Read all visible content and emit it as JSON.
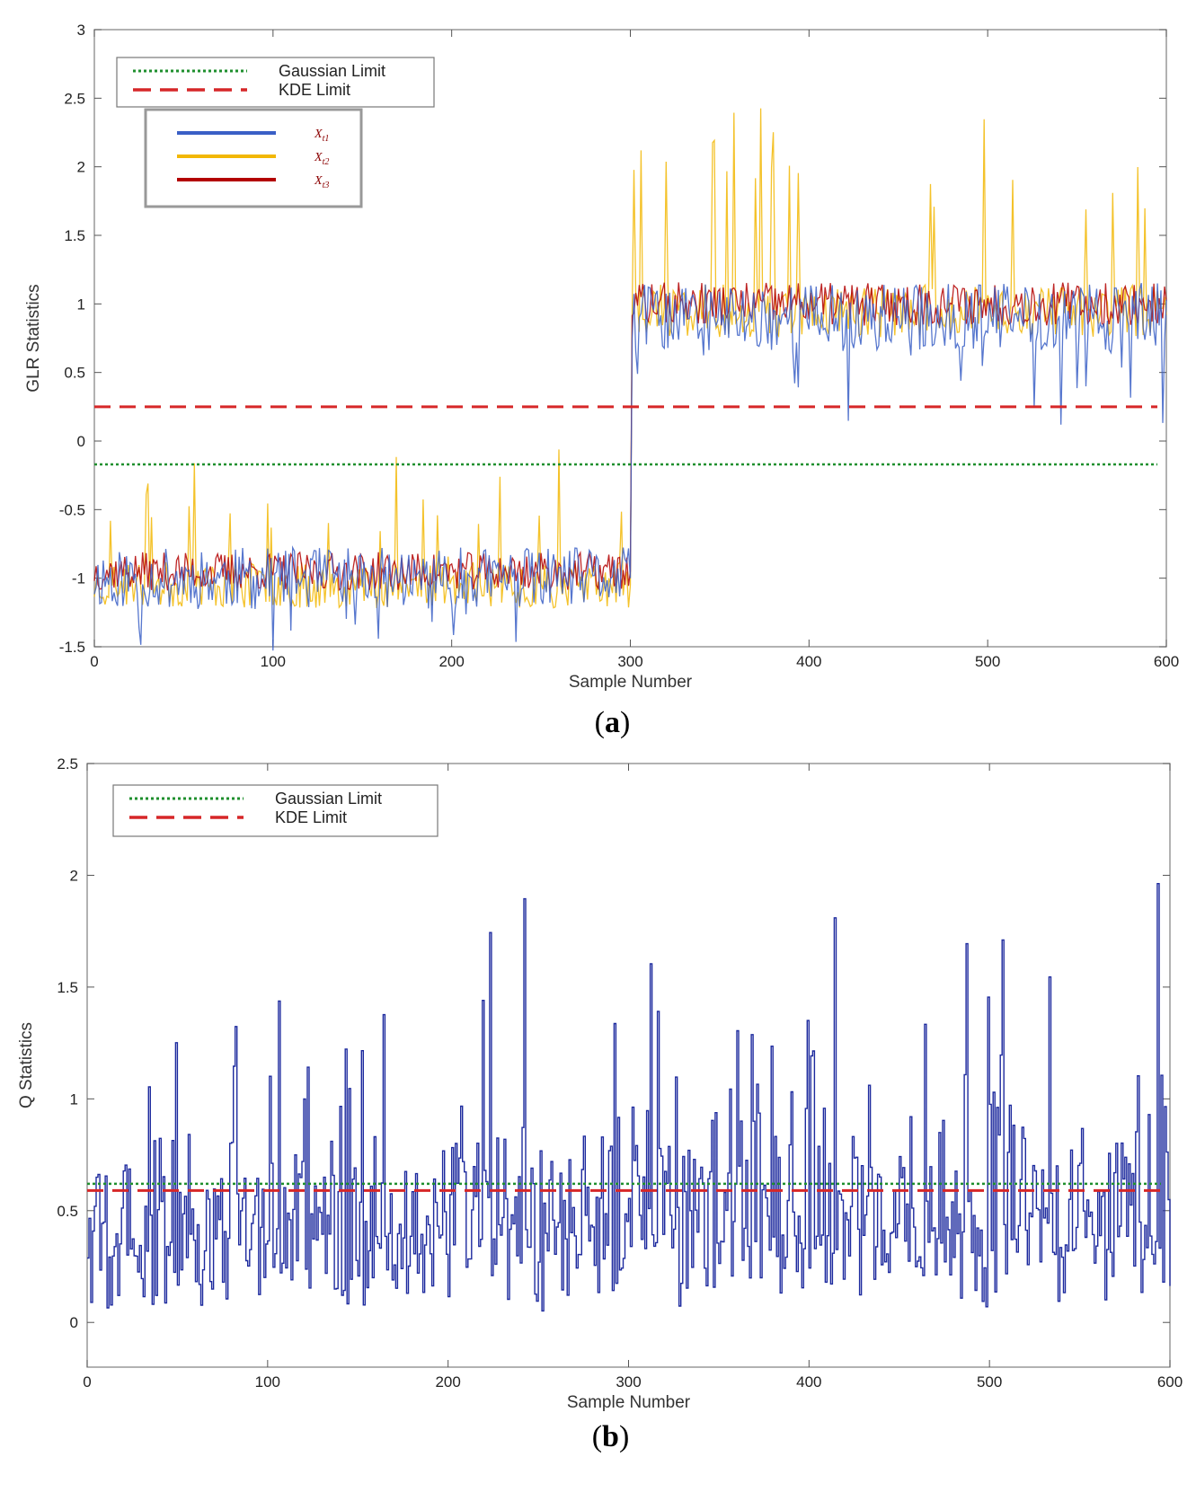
{
  "colors": {
    "gaussian": "#1f8f2e",
    "kde": "#d62728",
    "xt1": "#3a5fc6",
    "xt2": "#f2b705",
    "xt3": "#b30000",
    "q_series": "#1d2a9e",
    "frame": "#888888",
    "axis_text": "#222222"
  },
  "chart_data": [
    {
      "id": "a",
      "type": "line",
      "caption": {
        "open": "(",
        "letter": "a",
        "close": ")"
      },
      "title": "",
      "xlabel": "Sample Number",
      "ylabel": "GLR Statistics",
      "xlim": [
        0,
        600
      ],
      "ylim": [
        -1.5,
        3
      ],
      "xticks": [
        0,
        100,
        200,
        300,
        400,
        500,
        600
      ],
      "yticks": [
        -1.5,
        -1,
        -0.5,
        0,
        0.5,
        1,
        1.5,
        2,
        2.5,
        3
      ],
      "grid": false,
      "legend": [
        {
          "label": "Gaussian Limit",
          "style": "dotted",
          "color_key": "gaussian"
        },
        {
          "label": "KDE Limit",
          "style": "dashed",
          "color_key": "kde"
        }
      ],
      "series_legend": [
        {
          "label": "X",
          "sub": "t1",
          "color_key": "xt1"
        },
        {
          "label": "X",
          "sub": "t2",
          "color_key": "xt2"
        },
        {
          "label": "X",
          "sub": "t3",
          "color_key": "xt3"
        }
      ],
      "limits": [
        {
          "name": "Gaussian Limit",
          "value": -0.17
        },
        {
          "name": "KDE Limit",
          "value": 0.25
        }
      ],
      "series": [
        {
          "name": "Xt1",
          "n_points": 601,
          "before_mean": -1.0,
          "after_mean": 0.9,
          "change_at": 300,
          "noise": 0.16,
          "seed": 11
        },
        {
          "name": "Xt2",
          "n_points": 601,
          "before_mean": -1.05,
          "after_mean": 0.95,
          "change_at": 300,
          "noise": 0.12,
          "seed": 23
        },
        {
          "name": "Xt3",
          "n_points": 601,
          "before_mean": -0.95,
          "after_mean": 1.0,
          "change_at": 300,
          "noise": 0.1,
          "seed": 37
        }
      ]
    },
    {
      "id": "b",
      "type": "line",
      "caption": {
        "open": "(",
        "letter": "b",
        "close": ")"
      },
      "title": "",
      "xlabel": "Sample Number",
      "ylabel": "Q Statistics",
      "xlim": [
        0,
        600
      ],
      "ylim": [
        -0.2,
        2.5
      ],
      "xticks": [
        0,
        100,
        200,
        300,
        400,
        500,
        600
      ],
      "yticks": [
        0,
        0.5,
        1,
        1.5,
        2,
        2.5
      ],
      "grid": false,
      "legend": [
        {
          "label": "Gaussian Limit",
          "style": "dotted",
          "color_key": "gaussian"
        },
        {
          "label": "KDE Limit",
          "style": "dashed",
          "color_key": "kde"
        }
      ],
      "limits": [
        {
          "name": "Gaussian Limit",
          "value": 0.62
        },
        {
          "name": "KDE Limit",
          "value": 0.59
        }
      ],
      "series": [
        {
          "name": "Q",
          "n_points": 601,
          "mean": 0.45,
          "spread": 0.38,
          "seed": 5
        }
      ]
    }
  ]
}
